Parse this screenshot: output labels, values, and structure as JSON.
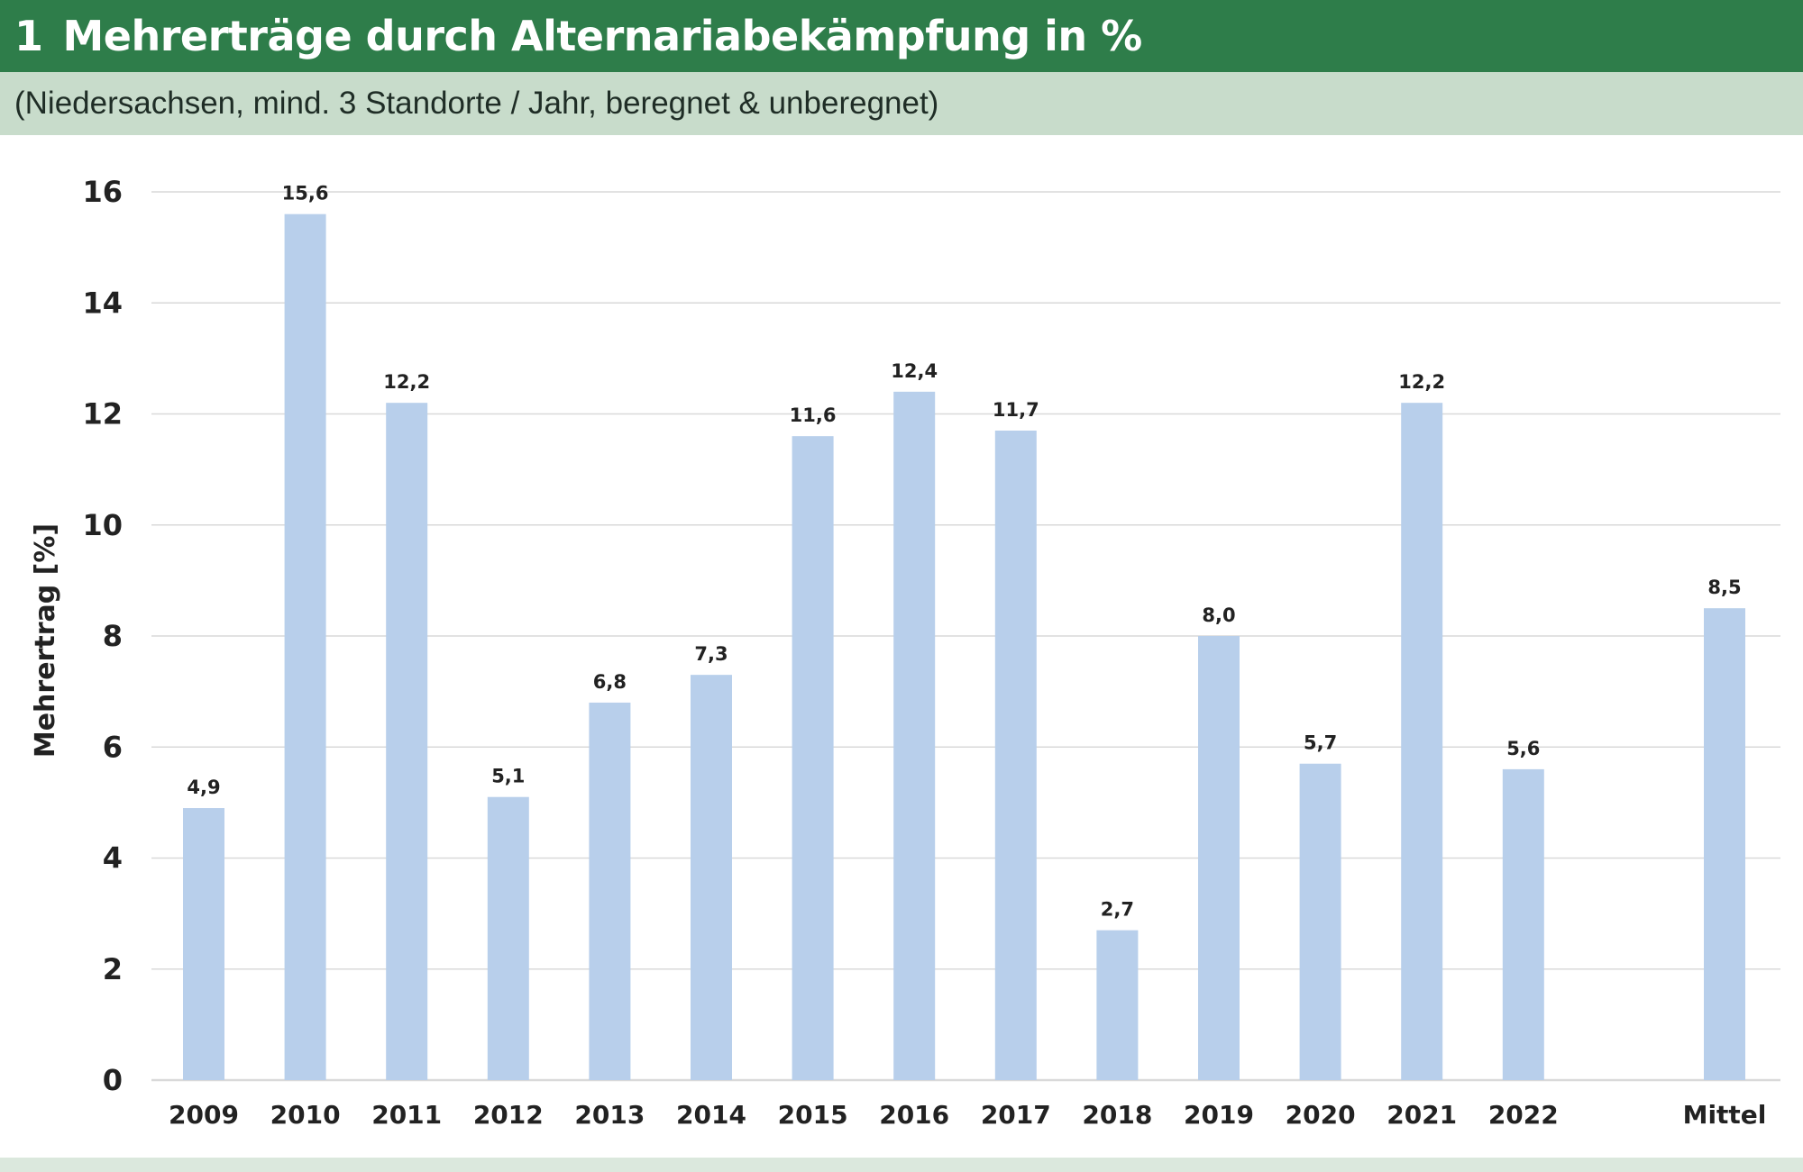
{
  "header": {
    "figure_number": "1",
    "title": "Mehrerträge durch Alternariabekämpfung in %",
    "subtitle": "(Niedersachsen, mind. 3 Standorte / Jahr, beregnet & unberegnet)"
  },
  "colors": {
    "title_bar": "#2e7d4a",
    "subtitle_bar": "#c8dccb",
    "bar_fill": "#b8cfeb",
    "grid": "#d9d9d9",
    "text": "#222222"
  },
  "chart_data": {
    "type": "bar",
    "categories": [
      "2009",
      "2010",
      "2011",
      "2012",
      "2013",
      "2014",
      "2015",
      "2016",
      "2017",
      "2018",
      "2019",
      "2020",
      "2021",
      "2022",
      "Mittel"
    ],
    "values": [
      4.9,
      15.6,
      12.2,
      5.1,
      6.8,
      7.3,
      11.6,
      12.4,
      11.7,
      2.7,
      8.0,
      5.7,
      12.2,
      5.6,
      8.5
    ],
    "value_labels": [
      "4,9",
      "15,6",
      "12,2",
      "5,1",
      "6,8",
      "7,3",
      "11,6",
      "12,4",
      "11,7",
      "2,7",
      "8,0",
      "5,7",
      "12,2",
      "5,6",
      "8,5"
    ],
    "ylabel": "Mehrertrag [%]",
    "xlabel": "",
    "ylim": [
      0,
      16
    ],
    "yticks": [
      0,
      2,
      4,
      6,
      8,
      10,
      12,
      14,
      16
    ],
    "grid": true,
    "legend": "none"
  }
}
